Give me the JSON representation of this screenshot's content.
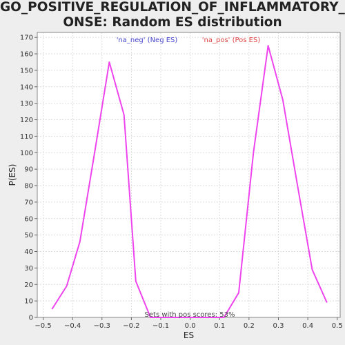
{
  "title": {
    "line1": "GO_POSITIVE_REGULATION_OF_INFLAMMATORY_RESP",
    "line2": "ONSE: Random ES distribution"
  },
  "legend": {
    "neg": "'na_neg' (Neg ES)",
    "pos": "'na_pos' (Pos ES)"
  },
  "annotation": "Sets with pos scores: 53%",
  "colors": {
    "line": "#ee44ee",
    "neg_legend": "#4444cc",
    "pos_legend": "#dd4444",
    "plot_bg": "#ffffff",
    "grid": "#dddddd"
  },
  "chart_data": {
    "type": "line",
    "title": "GO_POSITIVE_REGULATION_OF_INFLAMMATORY_RESPONSE: Random ES distribution",
    "xlabel": "ES",
    "ylabel": "P(ES)",
    "xlim": [
      -0.52,
      0.51
    ],
    "ylim": [
      0,
      173
    ],
    "x_ticks": [
      -0.5,
      -0.4,
      -0.3,
      -0.2,
      -0.1,
      0.0,
      0.1,
      0.2,
      0.3,
      0.4,
      0.5
    ],
    "x_tick_labels": [
      "−0.5",
      "−0.4",
      "−0.3",
      "−0.2",
      "−0.1",
      "0.0",
      "0.1",
      "0.2",
      "0.3",
      "0.4",
      "0.5"
    ],
    "y_ticks": [
      0,
      10,
      20,
      30,
      40,
      50,
      60,
      70,
      80,
      90,
      100,
      110,
      120,
      130,
      140,
      150,
      160,
      170
    ],
    "grid": true,
    "series": [
      {
        "x": [
          -0.47,
          -0.42,
          -0.375,
          -0.325,
          -0.275,
          -0.225,
          -0.185,
          -0.135,
          -0.085,
          -0.035,
          0.015,
          0.065,
          0.115,
          0.165,
          0.215,
          0.265,
          0.315,
          0.365,
          0.415,
          0.465
        ],
        "y": [
          5,
          19,
          46,
          100,
          155,
          123,
          22,
          0,
          0,
          0,
          0,
          0,
          0,
          15,
          100,
          165,
          132,
          80,
          29,
          9
        ]
      }
    ]
  }
}
